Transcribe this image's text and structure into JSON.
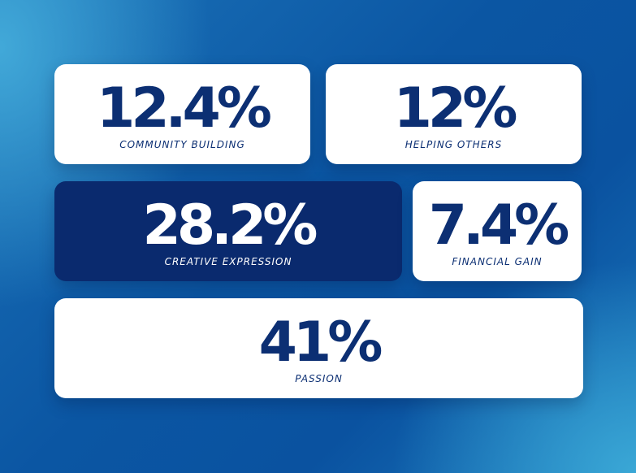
{
  "cards": [
    {
      "value": "12.4%",
      "label": "COMMUNITY BUILDING"
    },
    {
      "value": "12%",
      "label": "HELPING OTHERS"
    },
    {
      "value": "28.2%",
      "label": "CREATIVE EXPRESSION"
    },
    {
      "value": "7.4%",
      "label": "FINANCIAL GAIN"
    },
    {
      "value": "41%",
      "label": "PASSION"
    }
  ]
}
